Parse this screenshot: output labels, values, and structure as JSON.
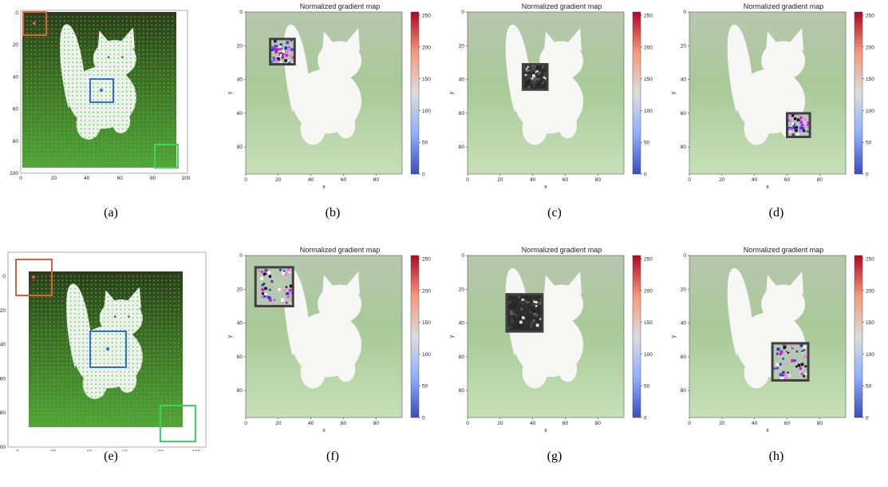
{
  "figure": {
    "panels": [
      {
        "id": "a",
        "caption": "(a)",
        "kind": "grid"
      },
      {
        "id": "b",
        "caption": "(b)",
        "kind": "gradient",
        "title": "Normalized gradient map",
        "xlabel": "x",
        "ylabel": "y"
      },
      {
        "id": "c",
        "caption": "(c)",
        "kind": "gradient",
        "title": "Normalized gradient map",
        "xlabel": "x",
        "ylabel": "y"
      },
      {
        "id": "d",
        "caption": "(d)",
        "kind": "gradient",
        "title": "Normalized gradient map",
        "xlabel": "x",
        "ylabel": "y"
      },
      {
        "id": "e",
        "caption": "(e)",
        "kind": "grid"
      },
      {
        "id": "f",
        "caption": "(f)",
        "kind": "gradient",
        "title": "Normalized gradient map",
        "xlabel": "x",
        "ylabel": "y"
      },
      {
        "id": "g",
        "caption": "(g)",
        "kind": "gradient",
        "title": "Normalized gradient map",
        "xlabel": "x",
        "ylabel": "y"
      },
      {
        "id": "h",
        "caption": "(h)",
        "kind": "gradient",
        "title": "Normalized gradient map",
        "xlabel": "x",
        "ylabel": "y"
      }
    ],
    "grid_ticks_row1": [
      "0",
      "20",
      "40",
      "60",
      "80",
      "100"
    ],
    "grid_ticks_row2": [
      "0",
      "20",
      "40",
      "60",
      "80",
      "100"
    ],
    "axis_ticks": [
      "0",
      "20",
      "40",
      "60",
      "80"
    ],
    "colorbar_ticks": [
      "0",
      "50",
      "100",
      "150",
      "200",
      "250"
    ],
    "box_colors": {
      "red": "#e0603a",
      "blue": "#2f6fd6",
      "green": "#3ed35a",
      "patch_frame": "#404040"
    },
    "colorbar_colors": [
      "#3b4cc0",
      "#8db0fe",
      "#dddddd",
      "#f49a7b",
      "#b40426"
    ]
  }
}
